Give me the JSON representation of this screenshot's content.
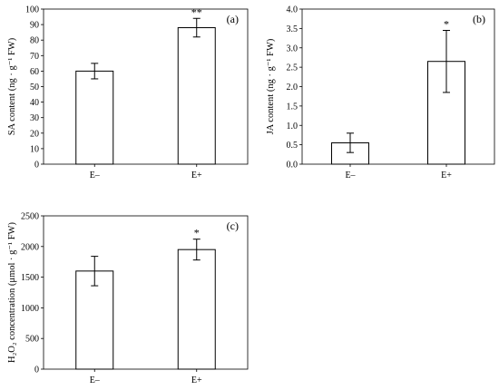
{
  "chart_data": [
    {
      "type": "bar",
      "panel_label": "(a)",
      "ylabel": "SA content (ng · g⁻¹ FW)",
      "categories": [
        "E–",
        "E+"
      ],
      "values": [
        60,
        88
      ],
      "errors": [
        5,
        6
      ],
      "significance": [
        "",
        "**"
      ],
      "ylim": [
        0,
        100
      ],
      "yticks": [
        "0",
        "10",
        "20",
        "30",
        "40",
        "50",
        "60",
        "70",
        "80",
        "90",
        "100"
      ],
      "grid": false
    },
    {
      "type": "bar",
      "panel_label": "(b)",
      "ylabel": "JA content (ng · g⁻¹ FW)",
      "categories": [
        "E–",
        "E+"
      ],
      "values": [
        0.55,
        2.65
      ],
      "errors": [
        0.25,
        0.8
      ],
      "significance": [
        "",
        "*"
      ],
      "ylim": [
        0,
        4
      ],
      "yticks": [
        "0.0",
        "0.5",
        "1.0",
        "1.5",
        "2.0",
        "2.5",
        "3.0",
        "3.5",
        "4.0"
      ],
      "grid": false
    },
    {
      "type": "bar",
      "panel_label": "(c)",
      "ylabel": "H₂O₂ concentration (μmol · g⁻¹ FW)",
      "categories": [
        "E–",
        "E+"
      ],
      "values": [
        1600,
        1950
      ],
      "errors": [
        240,
        170
      ],
      "significance": [
        "",
        "*"
      ],
      "ylim": [
        0,
        2500
      ],
      "yticks": [
        "0",
        "500",
        "1000",
        "1500",
        "2000",
        "2500"
      ],
      "grid": false
    }
  ]
}
